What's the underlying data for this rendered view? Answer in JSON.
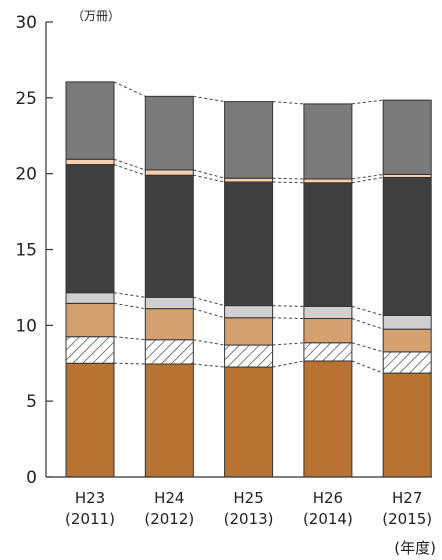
{
  "chart_data": {
    "type": "bar",
    "stacked": true,
    "y_unit": "（万冊）",
    "x_unit": "(年度)",
    "ylim": [
      0,
      30
    ],
    "yticks": [
      0,
      5,
      10,
      15,
      20,
      25,
      30
    ],
    "categories": [
      {
        "era": "H23",
        "year": "(2011)"
      },
      {
        "era": "H24",
        "year": "(2012)"
      },
      {
        "era": "H25",
        "year": "(2013)"
      },
      {
        "era": "H26",
        "year": "(2014)"
      },
      {
        "era": "H27",
        "year": "(2015)"
      }
    ],
    "series": [
      {
        "values": [
          7.5,
          7.45,
          7.25,
          7.65,
          6.85
        ],
        "color": "#b87333",
        "pattern": "solid"
      },
      {
        "values": [
          1.75,
          1.6,
          1.45,
          1.2,
          1.4
        ],
        "color": "#ffffff",
        "pattern": "hatch"
      },
      {
        "values": [
          2.2,
          2.05,
          1.8,
          1.6,
          1.5
        ],
        "color": "#d4a070",
        "pattern": "solid"
      },
      {
        "values": [
          0.7,
          0.75,
          0.8,
          0.8,
          0.9
        ],
        "color": "#d0d0d0",
        "pattern": "solid"
      },
      {
        "values": [
          8.45,
          8.05,
          8.15,
          8.15,
          9.1
        ],
        "color": "#404040",
        "pattern": "solid"
      },
      {
        "values": [
          0.35,
          0.35,
          0.25,
          0.25,
          0.2
        ],
        "color": "#f8d0b0",
        "pattern": "solid"
      },
      {
        "values": [
          5.1,
          4.85,
          5.05,
          4.95,
          4.9
        ],
        "color": "#7a7a7a",
        "pattern": "solid"
      }
    ],
    "colors": {
      "axis": "#333333",
      "bar_stroke": "#333333",
      "connector": "#444444"
    }
  }
}
